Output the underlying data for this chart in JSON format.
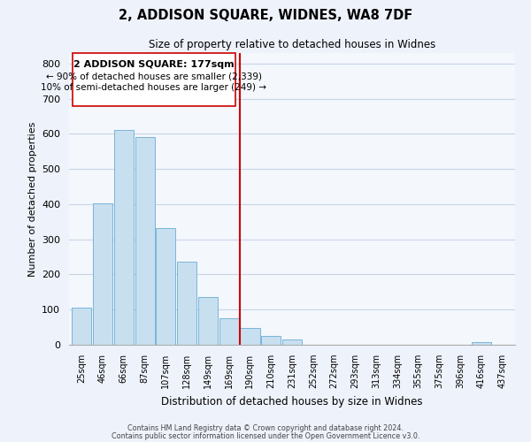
{
  "title": "2, ADDISON SQUARE, WIDNES, WA8 7DF",
  "subtitle": "Size of property relative to detached houses in Widnes",
  "xlabel": "Distribution of detached houses by size in Widnes",
  "ylabel": "Number of detached properties",
  "bar_labels": [
    "25sqm",
    "46sqm",
    "66sqm",
    "87sqm",
    "107sqm",
    "128sqm",
    "149sqm",
    "169sqm",
    "190sqm",
    "210sqm",
    "231sqm",
    "252sqm",
    "272sqm",
    "293sqm",
    "313sqm",
    "334sqm",
    "355sqm",
    "375sqm",
    "396sqm",
    "416sqm",
    "437sqm"
  ],
  "bar_values": [
    105,
    403,
    611,
    590,
    332,
    236,
    136,
    75,
    49,
    24,
    15,
    0,
    0,
    0,
    0,
    0,
    0,
    0,
    0,
    7,
    0
  ],
  "bar_color": "#c8dff0",
  "bar_edgecolor": "#6aadd5",
  "vline_color": "#cc0000",
  "ylim": [
    0,
    830
  ],
  "yticks": [
    0,
    100,
    200,
    300,
    400,
    500,
    600,
    700,
    800
  ],
  "annotation_title": "2 ADDISON SQUARE: 177sqm",
  "annotation_line1": "← 90% of detached houses are smaller (2,339)",
  "annotation_line2": "10% of semi-detached houses are larger (249) →",
  "footer_line1": "Contains HM Land Registry data © Crown copyright and database right 2024.",
  "footer_line2": "Contains public sector information licensed under the Open Government Licence v3.0.",
  "background_color": "#eef2fb",
  "plot_background": "#f4f7fc",
  "grid_color": "#c8d4e8"
}
